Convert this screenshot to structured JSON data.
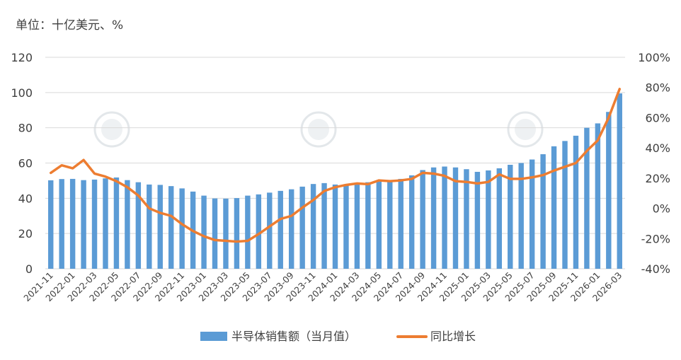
{
  "unit_label": "单位：十亿美元、%",
  "chart_data": {
    "type": "bar+line",
    "categories": [
      "2021-11",
      "2021-12",
      "2022-01",
      "2022-02",
      "2022-03",
      "2022-04",
      "2022-05",
      "2022-06",
      "2022-07",
      "2022-08",
      "2022-09",
      "2022-10",
      "2022-11",
      "2022-12",
      "2023-01",
      "2023-02",
      "2023-03",
      "2023-04",
      "2023-05",
      "2023-06",
      "2023-07",
      "2023-08",
      "2023-09",
      "2023-10",
      "2023-11",
      "2023-12",
      "2024-01",
      "2024-02",
      "2024-03",
      "2024-04",
      "2024-05",
      "2024-06",
      "2024-07",
      "2024-08",
      "2024-09",
      "2024-10",
      "2024-11",
      "2024-12",
      "2025-01",
      "2025-02",
      "2025-03",
      "2025-04",
      "2025-05",
      "2025-06",
      "2025-07",
      "2025-08",
      "2025-09",
      "2025-10",
      "2025-11",
      "2025-12",
      "2026-01",
      "2026-02",
      "2026-03"
    ],
    "x_tick_labels": [
      "2021-11",
      "2022-01",
      "2022-03",
      "2022-05",
      "2022-07",
      "2022-09",
      "2022-11",
      "2023-01",
      "2023-03",
      "2023-05",
      "2023-07",
      "2023-09",
      "2023-11",
      "2024-01",
      "2024-03",
      "2024-05",
      "2024-07",
      "2024-09",
      "2024-11",
      "2025-01",
      "2025-03",
      "2025-05",
      "2025-07",
      "2025-09",
      "2025-11",
      "2026-01",
      "2026-03"
    ],
    "series": [
      {
        "name": "半导体销售额（当月值）",
        "type": "bar",
        "axis": "left",
        "color": "#5b9bd5",
        "values": [
          50.2,
          50.9,
          51.0,
          50.3,
          50.6,
          51.3,
          51.8,
          50.3,
          49.1,
          47.8,
          47.6,
          46.9,
          45.6,
          43.8,
          41.5,
          39.9,
          39.8,
          40.1,
          41.5,
          42.2,
          43.2,
          44.2,
          45.1,
          46.6,
          48.1,
          48.6,
          47.8,
          48.0,
          48.5,
          49.1,
          49.5,
          49.8,
          51.0,
          53.0,
          56.0,
          57.5,
          58.0,
          57.5,
          56.5,
          55.0,
          55.8,
          57.0,
          59.0,
          60.0,
          62.0,
          65.0,
          69.5,
          72.5,
          75.5,
          80.0,
          82.5,
          89.0,
          99.5
        ]
      },
      {
        "name": "同比增长",
        "type": "line",
        "axis": "right",
        "color": "#ed7d31",
        "values": [
          23.5,
          28.5,
          26.5,
          32.0,
          23.0,
          21.0,
          18.0,
          14.0,
          8.5,
          0.0,
          -3.0,
          -5.0,
          -10.5,
          -15.0,
          -18.5,
          -21.0,
          -21.5,
          -22.0,
          -21.5,
          -17.0,
          -12.0,
          -7.0,
          -5.0,
          0.5,
          5.5,
          11.5,
          14.0,
          15.5,
          16.5,
          16.0,
          18.5,
          18.0,
          18.5,
          19.5,
          23.5,
          23.0,
          21.5,
          18.0,
          17.5,
          16.5,
          17.5,
          22.5,
          19.5,
          19.5,
          20.5,
          22.0,
          25.0,
          27.5,
          30.0,
          38.0,
          45.0,
          60.0,
          79.0
        ]
      }
    ],
    "y_left": {
      "min": 0,
      "max": 120,
      "step": 20,
      "tick_labels": [
        "0",
        "20",
        "40",
        "60",
        "80",
        "100",
        "120"
      ]
    },
    "y_right": {
      "min": -40,
      "max": 100,
      "step": 20,
      "tick_labels": [
        "-40%",
        "-20%",
        "0%",
        "20%",
        "40%",
        "60%",
        "80%",
        "100%"
      ]
    },
    "grid": true,
    "legend_position": "bottom"
  }
}
